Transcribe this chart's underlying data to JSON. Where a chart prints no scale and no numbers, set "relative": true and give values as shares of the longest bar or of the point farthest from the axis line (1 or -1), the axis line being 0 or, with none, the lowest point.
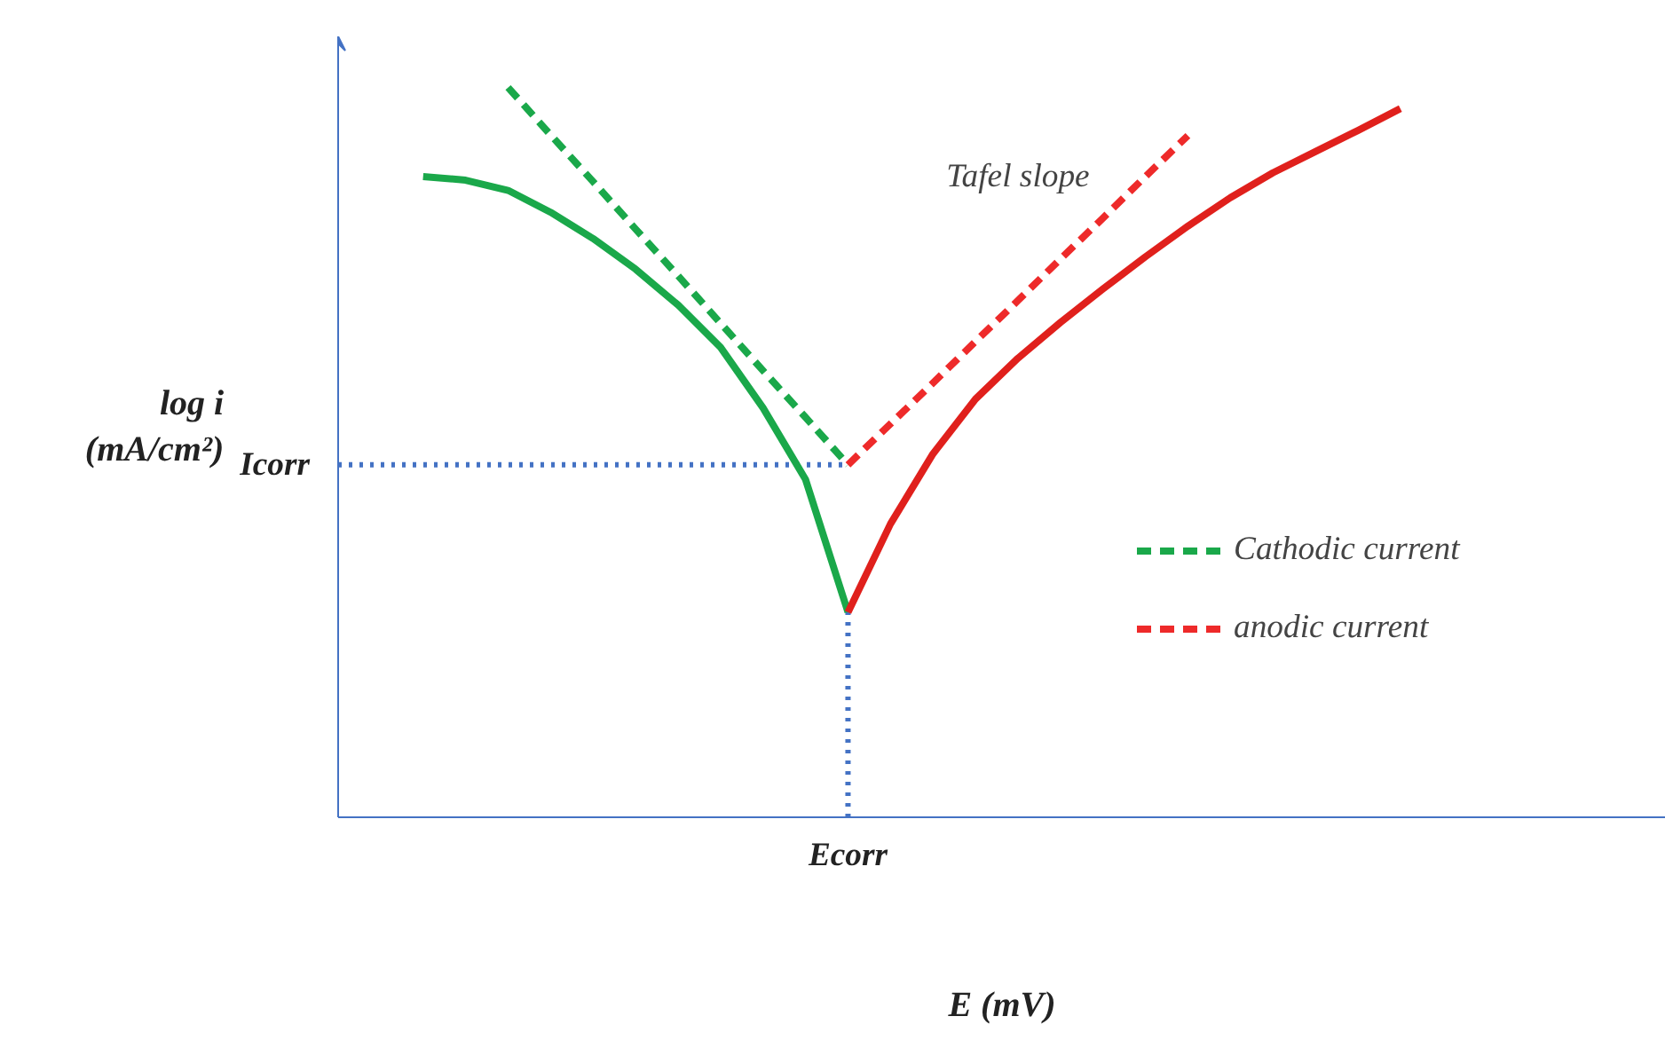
{
  "chart_data": {
    "type": "line",
    "relative": true,
    "xlabel": "E (mV)",
    "ylabel": "log i\n(mA/cm²)",
    "legend": "right",
    "grid": false,
    "categories": [
      null,
      null,
      null,
      null,
      null,
      null,
      null,
      null,
      null,
      null,
      null,
      null,
      null,
      null,
      null,
      null,
      null,
      null,
      null,
      null,
      null,
      null,
      null,
      null,
      null
    ],
    "series": [
      {
        "values": [
          null,
          0.878,
          0.873,
          0.859,
          0.829,
          0.793,
          0.751,
          0.702,
          0.644,
          0.561,
          0.463,
          0.281,
          null,
          null,
          null,
          null,
          null,
          null,
          null,
          null,
          null,
          null,
          null,
          null,
          null
        ],
        "color": "#1aa84a",
        "line_style": "solid"
      },
      {
        "values": [
          null,
          null,
          null,
          null,
          null,
          null,
          null,
          null,
          null,
          null,
          null,
          0.281,
          0.402,
          0.498,
          0.573,
          0.629,
          0.678,
          0.724,
          0.768,
          0.81,
          0.849,
          0.883,
          0.912,
          0.941,
          0.971
        ],
        "color": "#e0201c",
        "line_style": "solid"
      },
      {
        "name": "Cathodic current",
        "values": [
          null,
          null,
          null,
          1.0,
          0.935,
          0.871,
          0.806,
          0.742,
          0.677,
          0.612,
          0.548,
          0.483,
          null,
          null,
          null,
          null,
          null,
          null,
          null,
          null,
          null,
          null,
          null,
          null,
          null
        ],
        "color": "#1aa84a",
        "line_style": "dashed"
      },
      {
        "name": "anodic current",
        "values": [
          null,
          null,
          null,
          null,
          null,
          null,
          null,
          null,
          null,
          null,
          null,
          0.483,
          0.539,
          0.595,
          0.652,
          0.708,
          0.765,
          0.821,
          0.878,
          0.934,
          null,
          null,
          null,
          null,
          null
        ],
        "color": "#ee2a2a",
        "line_style": "dashed"
      }
    ],
    "ref_lines": [
      {
        "axis": "y",
        "value": 0.483,
        "label": "Icorr",
        "color": "#4472c4",
        "line_style": "dotted"
      }
    ],
    "annotations": [
      "Ecorr",
      "Tafel slope"
    ]
  }
}
